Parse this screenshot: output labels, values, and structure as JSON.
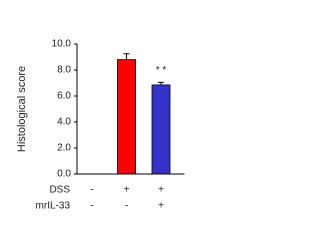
{
  "chart_data": {
    "type": "bar",
    "y_label": "Histological score",
    "values": [
      0,
      8.8,
      6.85
    ],
    "errors": [
      0,
      0.45,
      0.2
    ],
    "colors": [
      "#000000",
      "#ff0000",
      "#3333cc"
    ],
    "ylim": [
      0,
      10
    ],
    "yticks": [
      {
        "value": 0,
        "label": "0.0"
      },
      {
        "value": 2,
        "label": "2.0"
      },
      {
        "value": 4,
        "label": "4.0"
      },
      {
        "value": 6,
        "label": "6.0"
      },
      {
        "value": 8,
        "label": "8.0"
      },
      {
        "value": 10,
        "label": "10.0"
      }
    ],
    "annotations": [
      "* *"
    ],
    "conditions": [
      {
        "name": "DSS",
        "signs": [
          "-",
          "+",
          "+"
        ]
      },
      {
        "name": "mrIL-33",
        "signs": [
          "-",
          "-",
          "+"
        ]
      }
    ]
  }
}
